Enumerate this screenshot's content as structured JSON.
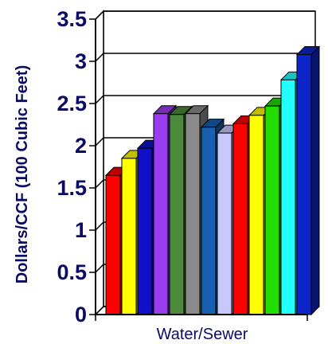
{
  "chart_data": {
    "type": "bar",
    "title": "",
    "ylabel": "Dollars/CCF (100 Cubic Feet)",
    "xlabel": "",
    "categories": [
      "Water/Sewer"
    ],
    "ylim": [
      0,
      3.5
    ],
    "yticks": [
      "0",
      "0.5",
      "1",
      "1.5",
      "2",
      "2.5",
      "3",
      "3.5"
    ],
    "grid": "horizontal",
    "legend": "none",
    "series": [
      {
        "color": "#ff0000",
        "values": [
          1.65
        ]
      },
      {
        "color": "#ffff00",
        "values": [
          1.85
        ]
      },
      {
        "color": "#1010c8",
        "values": [
          1.97
        ]
      },
      {
        "color": "#9a3cf0",
        "values": [
          2.38
        ]
      },
      {
        "color": "#4a8a3a",
        "values": [
          2.37
        ]
      },
      {
        "color": "#8a8a8a",
        "values": [
          2.38
        ]
      },
      {
        "color": "#1560b0",
        "values": [
          2.22
        ]
      },
      {
        "color": "#c8c8ff",
        "values": [
          2.15
        ]
      },
      {
        "color": "#ff0000",
        "values": [
          2.26
        ]
      },
      {
        "color": "#ffff00",
        "values": [
          2.36
        ]
      },
      {
        "color": "#22dd00",
        "values": [
          2.47
        ]
      },
      {
        "color": "#22ffff",
        "values": [
          2.78
        ]
      },
      {
        "color": "#0c24c8",
        "values": [
          3.08
        ]
      }
    ]
  }
}
